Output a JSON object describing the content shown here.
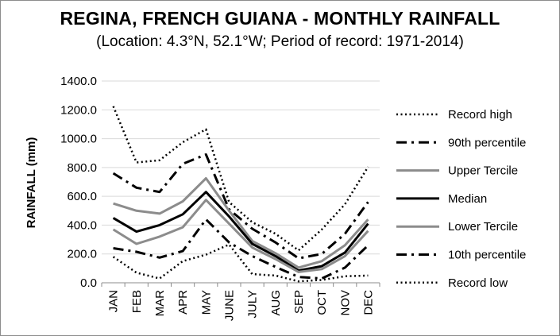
{
  "chart_data": {
    "type": "line",
    "title": "REGINA, FRENCH GUIANA - MONTHLY RAINFALL",
    "subtitle": "(Location: 4.3°N, 52.1°W; Period of record: 1971-2014)",
    "ylabel": "RAINFALL (mm)",
    "xlabel": "",
    "ylim": [
      0,
      1400
    ],
    "yticks": [
      "0.0",
      "200.0",
      "400.0",
      "600.0",
      "800.0",
      "1000.0",
      "1200.0",
      "1400.0"
    ],
    "categories": [
      "JAN",
      "FEB",
      "MAR",
      "APR",
      "MAY",
      "JUNE",
      "JULY",
      "AUG",
      "SEP",
      "OCT",
      "NOV",
      "DEC"
    ],
    "grid": "horizontal",
    "legend": "right",
    "series": [
      {
        "name": "Record high",
        "style": "dotted",
        "color": "#000000",
        "values": [
          1225,
          835,
          850,
          975,
          1065,
          560,
          420,
          340,
          225,
          370,
          545,
          805
        ]
      },
      {
        "name": "90th percentile",
        "style": "dashdot",
        "color": "#000000",
        "values": [
          760,
          660,
          630,
          825,
          890,
          510,
          375,
          280,
          170,
          200,
          340,
          560
        ]
      },
      {
        "name": "Upper Tercile",
        "style": "solid",
        "color": "#8c8c8c",
        "values": [
          550,
          500,
          480,
          565,
          725,
          500,
          290,
          205,
          105,
          150,
          260,
          440
        ]
      },
      {
        "name": "Median",
        "style": "solid",
        "color": "#000000",
        "values": [
          450,
          355,
          400,
          475,
          630,
          460,
          270,
          185,
          85,
          115,
          210,
          410
        ]
      },
      {
        "name": "Lower Tercile",
        "style": "solid",
        "color": "#8c8c8c",
        "values": [
          370,
          270,
          320,
          385,
          575,
          410,
          245,
          165,
          75,
          95,
          185,
          360
        ]
      },
      {
        "name": "10th percentile",
        "style": "dashdot",
        "color": "#000000",
        "values": [
          240,
          215,
          175,
          220,
          440,
          280,
          185,
          110,
          40,
          30,
          105,
          260
        ]
      },
      {
        "name": "Record low",
        "style": "dotted",
        "color": "#000000",
        "values": [
          180,
          70,
          30,
          150,
          195,
          265,
          60,
          50,
          10,
          20,
          45,
          50
        ]
      }
    ]
  }
}
